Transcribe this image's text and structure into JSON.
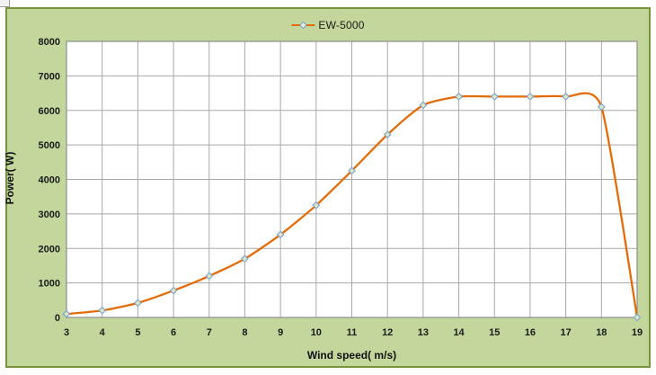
{
  "chart": {
    "legend_label": "EW-5000"
  },
  "chart_data": {
    "type": "line",
    "title": "",
    "series": [
      {
        "name": "EW-5000",
        "x": [
          3,
          4,
          5,
          6,
          7,
          8,
          9,
          10,
          11,
          12,
          13,
          14,
          15,
          16,
          17,
          18,
          19
        ],
        "values": [
          100,
          200,
          420,
          780,
          1200,
          1700,
          2400,
          3250,
          4250,
          5300,
          6150,
          6400,
          6400,
          6400,
          6400,
          6100,
          0
        ]
      }
    ],
    "xlabel": "Wind speed( m/s)",
    "ylabel": "Power( W)",
    "xlim": [
      3,
      19
    ],
    "ylim": [
      0,
      8000
    ],
    "x_ticks": [
      3,
      4,
      5,
      6,
      7,
      8,
      9,
      10,
      11,
      12,
      13,
      14,
      15,
      16,
      17,
      18,
      19
    ],
    "y_ticks": [
      0,
      1000,
      2000,
      3000,
      4000,
      5000,
      6000,
      7000,
      8000
    ],
    "grid": true,
    "smooth": true,
    "legend_position": "top-center",
    "style": {
      "chart_bg": "#c3d69b",
      "chart_border": "#77933c",
      "plot_bg": "#ffffff",
      "gridline": "#a8a8a8",
      "plot_border": "#8e8e8e",
      "line_color": "#e36c09",
      "marker_fill": "#dce7c5",
      "marker_stroke": "#7ba2cf",
      "text_color": "#1a1a1a"
    }
  }
}
